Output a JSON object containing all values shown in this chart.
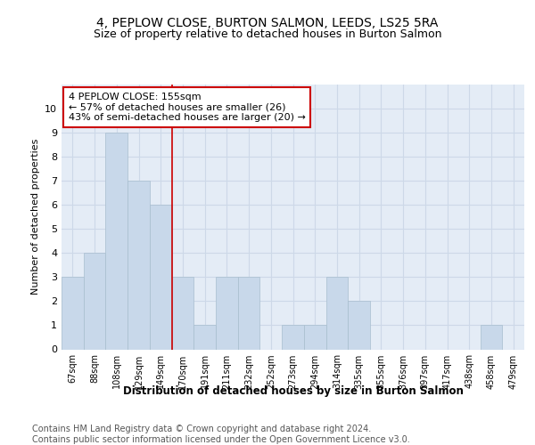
{
  "title1": "4, PEPLOW CLOSE, BURTON SALMON, LEEDS, LS25 5RA",
  "title2": "Size of property relative to detached houses in Burton Salmon",
  "xlabel": "Distribution of detached houses by size in Burton Salmon",
  "ylabel": "Number of detached properties",
  "categories": [
    "67sqm",
    "88sqm",
    "108sqm",
    "129sqm",
    "149sqm",
    "170sqm",
    "191sqm",
    "211sqm",
    "232sqm",
    "252sqm",
    "273sqm",
    "294sqm",
    "314sqm",
    "335sqm",
    "355sqm",
    "376sqm",
    "397sqm",
    "417sqm",
    "438sqm",
    "458sqm",
    "479sqm"
  ],
  "values": [
    3,
    4,
    9,
    7,
    6,
    3,
    1,
    3,
    3,
    0,
    1,
    1,
    3,
    2,
    0,
    0,
    0,
    0,
    0,
    1,
    0
  ],
  "bar_color": "#c8d8ea",
  "bar_edgecolor": "#a8bece",
  "grid_color": "#cdd8e8",
  "background_color": "#e4ecf6",
  "vline_x": 4.5,
  "vline_color": "#cc0000",
  "annotation_text": "4 PEPLOW CLOSE: 155sqm\n← 57% of detached houses are smaller (26)\n43% of semi-detached houses are larger (20) →",
  "annotation_box_color": "#ffffff",
  "annotation_box_edgecolor": "#cc0000",
  "ylim": [
    0,
    11
  ],
  "footer": "Contains HM Land Registry data © Crown copyright and database right 2024.\nContains public sector information licensed under the Open Government Licence v3.0.",
  "title1_fontsize": 10,
  "title2_fontsize": 9,
  "annotation_fontsize": 8,
  "footer_fontsize": 7,
  "ylabel_fontsize": 8,
  "xlabel_fontsize": 8.5
}
